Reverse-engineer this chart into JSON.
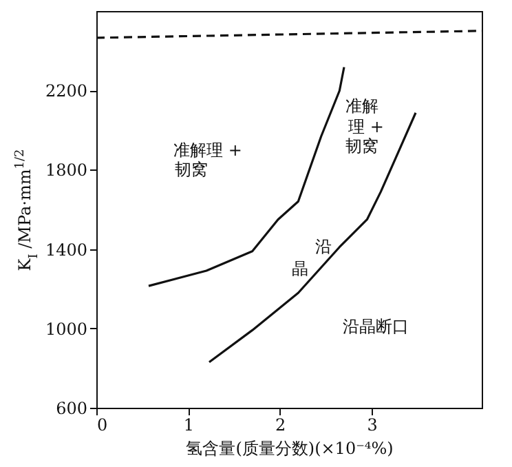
{
  "chart_data": {
    "type": "line",
    "xlabel": "氢含量(质量分数)(×10⁻⁴%)",
    "ylabel": "K$_{I}$ /MPa·mm$^{1/2}$",
    "xlim": [
      0,
      4.2
    ],
    "xticks": [
      0,
      1,
      2,
      3
    ],
    "ylim": [
      600,
      2600
    ],
    "yticks": [
      600,
      1000,
      1400,
      1800,
      2200
    ],
    "series": [
      {
        "color": "#111111",
        "x": [
          0.57,
          1.2,
          1.7,
          1.98,
          2.2,
          2.45,
          2.65,
          2.7
        ],
        "values": [
          1214,
          1291,
          1389,
          1549,
          1640,
          1968,
          2198,
          2317
        ]
      },
      {
        "color": "#111111",
        "x": [
          1.23,
          1.7,
          2.2,
          2.65,
          2.95,
          3.1,
          3.3,
          3.48
        ],
        "values": [
          830,
          991,
          1179,
          1410,
          1549,
          1689,
          1898,
          2087
        ]
      },
      {
        "color": "#111111",
        "line_style": "dashed",
        "x": [
          0,
          4.2
        ],
        "values": [
          2465,
          2500
        ]
      }
    ],
    "annotations": [
      "准解理 +",
      "韧窝",
      "准解",
      "理 +",
      "韧窝",
      "沿",
      "晶",
      "沿晶断口"
    ]
  }
}
